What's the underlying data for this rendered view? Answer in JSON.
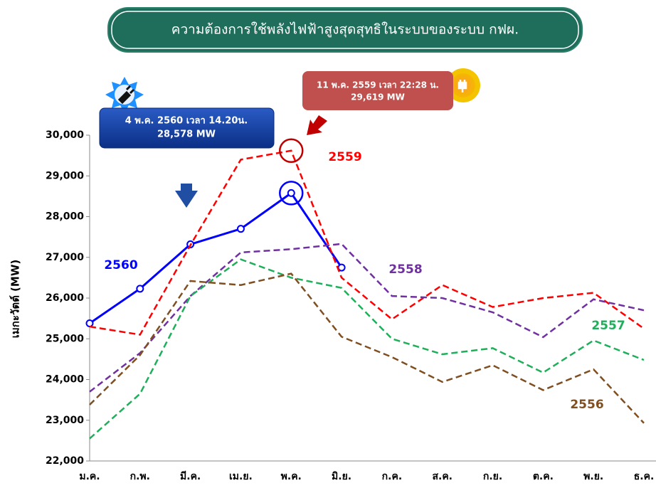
{
  "chart_data": {
    "type": "line",
    "title": "ความต้องการใช้พลังไฟฟ้าสูงสุดสุทธิในระบบของระบบ กฟผ.",
    "y_label": "เมกะวัตต์ (MW)",
    "categories": [
      "ม.ค.",
      "ก.พ.",
      "มี.ค.",
      "เม.ย.",
      "พ.ค.",
      "มิ.ย.",
      "ก.ค.",
      "ส.ค.",
      "ก.ย.",
      "ต.ค.",
      "พ.ย.",
      "ธ.ค."
    ],
    "ylim": [
      22000,
      30000
    ],
    "yticks": [
      {
        "value": 22000,
        "label": "22,000"
      },
      {
        "value": 23000,
        "label": "23,000"
      },
      {
        "value": 24000,
        "label": "24,000"
      },
      {
        "value": 25000,
        "label": "25,000"
      },
      {
        "value": 26000,
        "label": "26,000"
      },
      {
        "value": 27000,
        "label": "27,000"
      },
      {
        "value": 28000,
        "label": "28,000"
      },
      {
        "value": 29000,
        "label": "29,000"
      },
      {
        "value": 30000,
        "label": "30,000"
      }
    ],
    "series": [
      {
        "name": "2560",
        "color": "#0000ff",
        "line_style": "solid",
        "markers": true,
        "values": [
          25380,
          26230,
          27320,
          27700,
          28578,
          26750,
          null,
          null,
          null,
          null,
          null,
          null
        ]
      },
      {
        "name": "2559",
        "color": "#ff0000",
        "line_style": "dashed",
        "values": [
          25300,
          25100,
          27300,
          29400,
          29619,
          26500,
          25480,
          26320,
          25780,
          26000,
          26130,
          25250
        ]
      },
      {
        "name": "2558",
        "color": "#7030a0",
        "line_style": "dashed",
        "values": [
          23700,
          24650,
          26050,
          27120,
          27200,
          27330,
          26050,
          26000,
          25650,
          25040,
          25970,
          25700
        ]
      },
      {
        "name": "2557",
        "color": "#1fae5a",
        "line_style": "dashed",
        "values": [
          22550,
          23650,
          26050,
          26950,
          26500,
          26250,
          25000,
          24620,
          24770,
          24170,
          24960,
          24480
        ]
      },
      {
        "name": "2556",
        "color": "#7f4f21",
        "line_style": "dashed",
        "values": [
          23380,
          24600,
          26420,
          26320,
          26600,
          25050,
          24550,
          23940,
          24350,
          23740,
          24250,
          22930
        ]
      }
    ],
    "annotations": [
      {
        "lines": [
          "4  พ.ค. 2560 เวลา 14.20น.",
          "28,578 MW"
        ]
      },
      {
        "lines": [
          "11 พ.ค. 2559 เวลา 22:28 น.",
          "29,619 MW"
        ]
      }
    ]
  }
}
